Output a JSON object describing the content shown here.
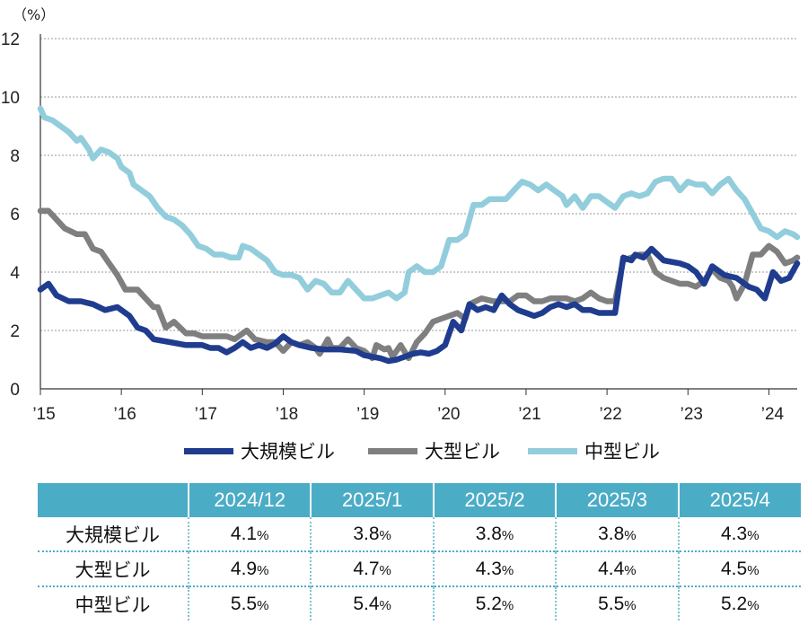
{
  "chart_data": {
    "type": "line",
    "ylabel": "（%）",
    "ylim": [
      0,
      12
    ],
    "yticks": [
      0,
      2,
      4,
      6,
      8,
      10,
      12
    ],
    "xlim": [
      2015.0,
      2024.35
    ],
    "xticks": [
      {
        "value": 2015,
        "label": "’15"
      },
      {
        "value": 2016,
        "label": "’16"
      },
      {
        "value": 2017,
        "label": "’17"
      },
      {
        "value": 2018,
        "label": "’18"
      },
      {
        "value": 2019,
        "label": "’19"
      },
      {
        "value": 2020,
        "label": "’20"
      },
      {
        "value": 2021,
        "label": "’21"
      },
      {
        "value": 2022,
        "label": "’22"
      },
      {
        "value": 2023,
        "label": "’23"
      },
      {
        "value": 2024,
        "label": "’24"
      }
    ],
    "grid": "horizontal-dotted",
    "legend_position": "bottom",
    "series": [
      {
        "name": "大規模ビル",
        "color": "#1f3c8f",
        "points": [
          [
            2015.0,
            3.4
          ],
          [
            2015.1,
            3.6
          ],
          [
            2015.2,
            3.2
          ],
          [
            2015.35,
            3.0
          ],
          [
            2015.5,
            3.0
          ],
          [
            2015.65,
            2.9
          ],
          [
            2015.8,
            2.7
          ],
          [
            2015.95,
            2.8
          ],
          [
            2016.1,
            2.5
          ],
          [
            2016.2,
            2.1
          ],
          [
            2016.3,
            2.0
          ],
          [
            2016.4,
            1.7
          ],
          [
            2016.6,
            1.6
          ],
          [
            2016.8,
            1.5
          ],
          [
            2017.0,
            1.5
          ],
          [
            2017.1,
            1.4
          ],
          [
            2017.2,
            1.4
          ],
          [
            2017.3,
            1.25
          ],
          [
            2017.4,
            1.4
          ],
          [
            2017.5,
            1.6
          ],
          [
            2017.6,
            1.4
          ],
          [
            2017.7,
            1.5
          ],
          [
            2017.8,
            1.4
          ],
          [
            2017.9,
            1.55
          ],
          [
            2018.0,
            1.8
          ],
          [
            2018.1,
            1.6
          ],
          [
            2018.2,
            1.5
          ],
          [
            2018.35,
            1.4
          ],
          [
            2018.5,
            1.35
          ],
          [
            2018.7,
            1.35
          ],
          [
            2018.9,
            1.3
          ],
          [
            2019.0,
            1.15
          ],
          [
            2019.1,
            1.1
          ],
          [
            2019.2,
            1.05
          ],
          [
            2019.3,
            0.95
          ],
          [
            2019.4,
            1.0
          ],
          [
            2019.5,
            1.1
          ],
          [
            2019.6,
            1.2
          ],
          [
            2019.7,
            1.25
          ],
          [
            2019.8,
            1.2
          ],
          [
            2019.9,
            1.3
          ],
          [
            2020.0,
            1.5
          ],
          [
            2020.1,
            2.3
          ],
          [
            2020.2,
            2.0
          ],
          [
            2020.3,
            2.9
          ],
          [
            2020.4,
            2.7
          ],
          [
            2020.5,
            2.8
          ],
          [
            2020.6,
            2.7
          ],
          [
            2020.7,
            3.2
          ],
          [
            2020.8,
            2.9
          ],
          [
            2020.9,
            2.7
          ],
          [
            2021.0,
            2.6
          ],
          [
            2021.1,
            2.5
          ],
          [
            2021.2,
            2.6
          ],
          [
            2021.3,
            2.8
          ],
          [
            2021.4,
            2.9
          ],
          [
            2021.5,
            2.8
          ],
          [
            2021.6,
            2.9
          ],
          [
            2021.7,
            2.7
          ],
          [
            2021.8,
            2.7
          ],
          [
            2021.9,
            2.6
          ],
          [
            2022.0,
            2.6
          ],
          [
            2022.1,
            2.6
          ],
          [
            2022.2,
            4.5
          ],
          [
            2022.3,
            4.4
          ],
          [
            2022.35,
            4.6
          ],
          [
            2022.45,
            4.5
          ],
          [
            2022.55,
            4.8
          ],
          [
            2022.7,
            4.4
          ],
          [
            2022.9,
            4.3
          ],
          [
            2023.0,
            4.2
          ],
          [
            2023.1,
            4.0
          ],
          [
            2023.2,
            3.6
          ],
          [
            2023.3,
            4.2
          ],
          [
            2023.45,
            3.9
          ],
          [
            2023.6,
            3.8
          ],
          [
            2023.75,
            3.5
          ],
          [
            2023.85,
            3.4
          ],
          [
            2023.95,
            3.1
          ],
          [
            2024.05,
            4.0
          ],
          [
            2024.15,
            3.7
          ],
          [
            2024.25,
            3.8
          ],
          [
            2024.35,
            4.3
          ]
        ]
      },
      {
        "name": "大型ビル",
        "color": "#7f7f7f",
        "points": [
          [
            2015.0,
            6.1
          ],
          [
            2015.05,
            6.1
          ],
          [
            2015.1,
            6.1
          ],
          [
            2015.2,
            5.8
          ],
          [
            2015.3,
            5.5
          ],
          [
            2015.45,
            5.3
          ],
          [
            2015.55,
            5.3
          ],
          [
            2015.65,
            4.8
          ],
          [
            2015.75,
            4.7
          ],
          [
            2015.85,
            4.3
          ],
          [
            2015.95,
            3.9
          ],
          [
            2016.05,
            3.4
          ],
          [
            2016.2,
            3.4
          ],
          [
            2016.3,
            3.1
          ],
          [
            2016.4,
            2.8
          ],
          [
            2016.45,
            2.8
          ],
          [
            2016.55,
            2.1
          ],
          [
            2016.65,
            2.3
          ],
          [
            2016.8,
            1.9
          ],
          [
            2016.9,
            1.9
          ],
          [
            2017.0,
            1.8
          ],
          [
            2017.1,
            1.8
          ],
          [
            2017.2,
            1.8
          ],
          [
            2017.3,
            1.8
          ],
          [
            2017.4,
            1.7
          ],
          [
            2017.5,
            1.9
          ],
          [
            2017.55,
            2.0
          ],
          [
            2017.65,
            1.7
          ],
          [
            2017.8,
            1.6
          ],
          [
            2017.9,
            1.6
          ],
          [
            2018.0,
            1.3
          ],
          [
            2018.1,
            1.6
          ],
          [
            2018.2,
            1.5
          ],
          [
            2018.3,
            1.6
          ],
          [
            2018.4,
            1.4
          ],
          [
            2018.45,
            1.2
          ],
          [
            2018.55,
            1.7
          ],
          [
            2018.6,
            1.4
          ],
          [
            2018.7,
            1.4
          ],
          [
            2018.8,
            1.7
          ],
          [
            2018.9,
            1.4
          ],
          [
            2019.0,
            1.3
          ],
          [
            2019.1,
            1.05
          ],
          [
            2019.15,
            1.5
          ],
          [
            2019.25,
            1.35
          ],
          [
            2019.3,
            1.4
          ],
          [
            2019.35,
            1.1
          ],
          [
            2019.45,
            1.5
          ],
          [
            2019.55,
            1.05
          ],
          [
            2019.65,
            1.6
          ],
          [
            2019.75,
            1.9
          ],
          [
            2019.85,
            2.3
          ],
          [
            2019.95,
            2.4
          ],
          [
            2020.05,
            2.5
          ],
          [
            2020.15,
            2.6
          ],
          [
            2020.25,
            2.4
          ],
          [
            2020.3,
            2.9
          ],
          [
            2020.45,
            3.1
          ],
          [
            2020.6,
            3.0
          ],
          [
            2020.7,
            3.0
          ],
          [
            2020.8,
            3.0
          ],
          [
            2020.9,
            3.2
          ],
          [
            2021.0,
            3.2
          ],
          [
            2021.1,
            3.0
          ],
          [
            2021.2,
            3.0
          ],
          [
            2021.3,
            3.1
          ],
          [
            2021.4,
            3.1
          ],
          [
            2021.5,
            3.1
          ],
          [
            2021.6,
            3.0
          ],
          [
            2021.7,
            3.1
          ],
          [
            2021.8,
            3.3
          ],
          [
            2021.9,
            3.1
          ],
          [
            2022.0,
            3.0
          ],
          [
            2022.1,
            3.0
          ],
          [
            2022.2,
            4.4
          ],
          [
            2022.3,
            4.5
          ],
          [
            2022.4,
            4.6
          ],
          [
            2022.5,
            4.6
          ],
          [
            2022.55,
            4.3
          ],
          [
            2022.6,
            4.0
          ],
          [
            2022.7,
            3.8
          ],
          [
            2022.8,
            3.7
          ],
          [
            2022.9,
            3.6
          ],
          [
            2023.0,
            3.6
          ],
          [
            2023.1,
            3.5
          ],
          [
            2023.2,
            3.7
          ],
          [
            2023.3,
            4.1
          ],
          [
            2023.4,
            3.8
          ],
          [
            2023.5,
            3.7
          ],
          [
            2023.55,
            3.5
          ],
          [
            2023.6,
            3.1
          ],
          [
            2023.7,
            3.6
          ],
          [
            2023.8,
            4.6
          ],
          [
            2023.9,
            4.6
          ],
          [
            2024.0,
            4.9
          ],
          [
            2024.1,
            4.7
          ],
          [
            2024.2,
            4.3
          ],
          [
            2024.3,
            4.4
          ],
          [
            2024.35,
            4.5
          ]
        ]
      },
      {
        "name": "中型ビル",
        "color": "#92cddc",
        "points": [
          [
            2015.0,
            9.6
          ],
          [
            2015.05,
            9.3
          ],
          [
            2015.15,
            9.2
          ],
          [
            2015.25,
            9.0
          ],
          [
            2015.35,
            8.8
          ],
          [
            2015.45,
            8.5
          ],
          [
            2015.5,
            8.6
          ],
          [
            2015.6,
            8.2
          ],
          [
            2015.65,
            7.9
          ],
          [
            2015.75,
            8.2
          ],
          [
            2015.85,
            8.1
          ],
          [
            2015.95,
            7.9
          ],
          [
            2016.0,
            7.6
          ],
          [
            2016.1,
            7.4
          ],
          [
            2016.15,
            7.0
          ],
          [
            2016.25,
            6.8
          ],
          [
            2016.35,
            6.6
          ],
          [
            2016.45,
            6.2
          ],
          [
            2016.55,
            5.9
          ],
          [
            2016.65,
            5.8
          ],
          [
            2016.75,
            5.6
          ],
          [
            2016.85,
            5.3
          ],
          [
            2016.95,
            4.9
          ],
          [
            2017.05,
            4.8
          ],
          [
            2017.15,
            4.6
          ],
          [
            2017.25,
            4.6
          ],
          [
            2017.35,
            4.5
          ],
          [
            2017.45,
            4.5
          ],
          [
            2017.5,
            4.9
          ],
          [
            2017.6,
            4.8
          ],
          [
            2017.7,
            4.6
          ],
          [
            2017.8,
            4.4
          ],
          [
            2017.9,
            4.0
          ],
          [
            2018.0,
            3.9
          ],
          [
            2018.1,
            3.9
          ],
          [
            2018.2,
            3.8
          ],
          [
            2018.3,
            3.4
          ],
          [
            2018.4,
            3.7
          ],
          [
            2018.5,
            3.6
          ],
          [
            2018.6,
            3.3
          ],
          [
            2018.7,
            3.3
          ],
          [
            2018.8,
            3.7
          ],
          [
            2018.9,
            3.4
          ],
          [
            2019.0,
            3.1
          ],
          [
            2019.1,
            3.1
          ],
          [
            2019.2,
            3.2
          ],
          [
            2019.3,
            3.3
          ],
          [
            2019.4,
            3.1
          ],
          [
            2019.5,
            3.3
          ],
          [
            2019.55,
            4.0
          ],
          [
            2019.65,
            4.2
          ],
          [
            2019.75,
            4.0
          ],
          [
            2019.85,
            4.0
          ],
          [
            2019.95,
            4.2
          ],
          [
            2020.05,
            5.1
          ],
          [
            2020.15,
            5.1
          ],
          [
            2020.25,
            5.3
          ],
          [
            2020.35,
            6.3
          ],
          [
            2020.45,
            6.3
          ],
          [
            2020.55,
            6.5
          ],
          [
            2020.65,
            6.5
          ],
          [
            2020.75,
            6.5
          ],
          [
            2020.85,
            6.8
          ],
          [
            2020.95,
            7.1
          ],
          [
            2021.05,
            7.0
          ],
          [
            2021.15,
            6.8
          ],
          [
            2021.25,
            7.0
          ],
          [
            2021.35,
            6.8
          ],
          [
            2021.45,
            6.6
          ],
          [
            2021.5,
            6.3
          ],
          [
            2021.6,
            6.6
          ],
          [
            2021.7,
            6.2
          ],
          [
            2021.8,
            6.6
          ],
          [
            2021.9,
            6.6
          ],
          [
            2022.0,
            6.4
          ],
          [
            2022.1,
            6.2
          ],
          [
            2022.2,
            6.6
          ],
          [
            2022.3,
            6.7
          ],
          [
            2022.4,
            6.6
          ],
          [
            2022.5,
            6.7
          ],
          [
            2022.6,
            7.1
          ],
          [
            2022.7,
            7.2
          ],
          [
            2022.8,
            7.2
          ],
          [
            2022.9,
            6.8
          ],
          [
            2023.0,
            7.1
          ],
          [
            2023.1,
            7.0
          ],
          [
            2023.2,
            7.0
          ],
          [
            2023.3,
            6.7
          ],
          [
            2023.4,
            7.0
          ],
          [
            2023.5,
            7.2
          ],
          [
            2023.6,
            6.8
          ],
          [
            2023.7,
            6.5
          ],
          [
            2023.8,
            6.0
          ],
          [
            2023.9,
            5.5
          ],
          [
            2024.0,
            5.4
          ],
          [
            2024.1,
            5.2
          ],
          [
            2024.2,
            5.4
          ],
          [
            2024.3,
            5.3
          ],
          [
            2024.35,
            5.2
          ]
        ]
      }
    ]
  },
  "table": {
    "headers": [
      "",
      "2024/12",
      "2025/1",
      "2025/2",
      "2025/3",
      "2025/4"
    ],
    "unit": "%",
    "rows": [
      {
        "label": "大規模ビル",
        "values": [
          "4.1",
          "3.8",
          "3.8",
          "3.8",
          "4.3"
        ]
      },
      {
        "label": "大型ビル",
        "values": [
          "4.9",
          "4.7",
          "4.3",
          "4.4",
          "4.5"
        ]
      },
      {
        "label": "中型ビル",
        "values": [
          "5.5",
          "5.4",
          "5.2",
          "5.5",
          "5.2"
        ]
      }
    ]
  },
  "colors": {
    "table_header": "#4bacc6",
    "grid": "#9a9a9a"
  }
}
